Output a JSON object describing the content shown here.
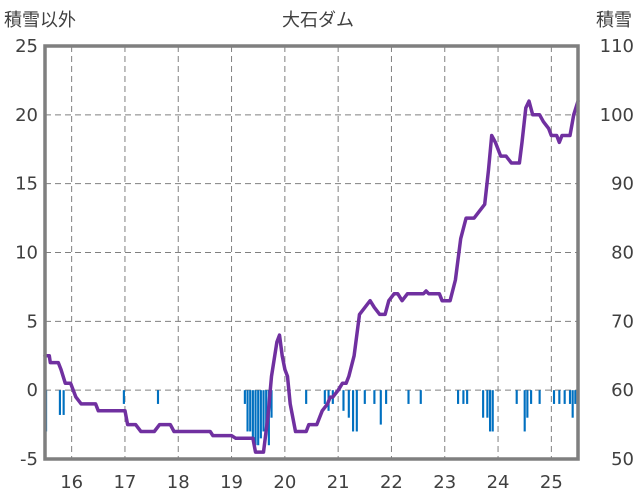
{
  "chart_data": {
    "type": "bar+line",
    "title": "大石ダム",
    "left_axis_label": "積雪以外",
    "right_axis_label": "積雪",
    "x_ticks": [
      "16",
      "17",
      "18",
      "19",
      "20",
      "21",
      "22",
      "23",
      "24",
      "25"
    ],
    "y_left": {
      "min": -5,
      "max": 25,
      "ticks": [
        "-5",
        "0",
        "5",
        "10",
        "15",
        "20",
        "25"
      ]
    },
    "y_right": {
      "min": 50,
      "max": 110,
      "ticks": [
        "50",
        "60",
        "70",
        "80",
        "90",
        "100",
        "110"
      ]
    },
    "x_range": [
      15.5,
      25.5
    ],
    "grid": {
      "vertical": "dashed",
      "horizontal": "dashed"
    },
    "colors": {
      "line": "#7030A0",
      "bars": "#0070C0",
      "frame": "#7f7f7f",
      "grid": "#808080",
      "text": "#404040"
    },
    "line_series": {
      "axis": "left",
      "points": [
        [
          15.5,
          2.5
        ],
        [
          15.58,
          2.5
        ],
        [
          15.6,
          2.0
        ],
        [
          15.75,
          2.0
        ],
        [
          15.8,
          1.5
        ],
        [
          15.88,
          0.5
        ],
        [
          15.98,
          0.5
        ],
        [
          16.08,
          -0.5
        ],
        [
          16.18,
          -1.0
        ],
        [
          16.45,
          -1.0
        ],
        [
          16.5,
          -1.5
        ],
        [
          17.0,
          -1.5
        ],
        [
          17.05,
          -2.5
        ],
        [
          17.2,
          -2.5
        ],
        [
          17.3,
          -3.0
        ],
        [
          17.55,
          -3.0
        ],
        [
          17.65,
          -2.5
        ],
        [
          17.85,
          -2.5
        ],
        [
          17.92,
          -3.0
        ],
        [
          18.6,
          -3.0
        ],
        [
          18.65,
          -3.3
        ],
        [
          19.0,
          -3.3
        ],
        [
          19.08,
          -3.5
        ],
        [
          19.4,
          -3.5
        ],
        [
          19.45,
          -4.5
        ],
        [
          19.6,
          -4.5
        ],
        [
          19.68,
          -2.0
        ],
        [
          19.75,
          1.0
        ],
        [
          19.85,
          3.5
        ],
        [
          19.9,
          4.0
        ],
        [
          19.95,
          2.5
        ],
        [
          20.0,
          1.5
        ],
        [
          20.05,
          1.0
        ],
        [
          20.1,
          -1.0
        ],
        [
          20.2,
          -3.0
        ],
        [
          20.4,
          -3.0
        ],
        [
          20.45,
          -2.5
        ],
        [
          20.6,
          -2.5
        ],
        [
          20.7,
          -1.5
        ],
        [
          20.8,
          -1.0
        ],
        [
          20.85,
          -0.5
        ],
        [
          20.9,
          -0.5
        ],
        [
          21.0,
          0.0
        ],
        [
          21.08,
          0.5
        ],
        [
          21.15,
          0.5
        ],
        [
          21.2,
          1.0
        ],
        [
          21.3,
          2.5
        ],
        [
          21.4,
          5.5
        ],
        [
          21.5,
          6.0
        ],
        [
          21.6,
          6.5
        ],
        [
          21.68,
          6.0
        ],
        [
          21.78,
          5.5
        ],
        [
          21.88,
          5.5
        ],
        [
          21.95,
          6.5
        ],
        [
          22.05,
          7.0
        ],
        [
          22.12,
          7.0
        ],
        [
          22.2,
          6.5
        ],
        [
          22.3,
          7.0
        ],
        [
          22.6,
          7.0
        ],
        [
          22.65,
          7.2
        ],
        [
          22.7,
          7.0
        ],
        [
          22.9,
          7.0
        ],
        [
          22.95,
          6.5
        ],
        [
          23.1,
          6.5
        ],
        [
          23.2,
          8.0
        ],
        [
          23.3,
          11.0
        ],
        [
          23.4,
          12.5
        ],
        [
          23.55,
          12.5
        ],
        [
          23.65,
          13.0
        ],
        [
          23.75,
          13.5
        ],
        [
          23.82,
          16.0
        ],
        [
          23.88,
          18.5
        ],
        [
          23.95,
          18.0
        ],
        [
          24.05,
          17.0
        ],
        [
          24.15,
          17.0
        ],
        [
          24.25,
          16.5
        ],
        [
          24.4,
          16.5
        ],
        [
          24.45,
          18.0
        ],
        [
          24.52,
          20.5
        ],
        [
          24.58,
          21.0
        ],
        [
          24.65,
          20.0
        ],
        [
          24.78,
          20.0
        ],
        [
          24.85,
          19.5
        ],
        [
          24.95,
          19.0
        ],
        [
          25.0,
          18.5
        ],
        [
          25.1,
          18.5
        ],
        [
          25.15,
          18.0
        ],
        [
          25.2,
          18.5
        ],
        [
          25.35,
          18.5
        ],
        [
          25.42,
          20.0
        ],
        [
          25.5,
          21.0
        ]
      ]
    },
    "bar_series": {
      "axis": "left",
      "width": 0.04,
      "values": [
        [
          15.5,
          -3.0
        ],
        [
          15.78,
          -1.8
        ],
        [
          15.85,
          -1.8
        ],
        [
          16.98,
          -1.0
        ],
        [
          17.62,
          -1.0
        ],
        [
          19.25,
          -1.0
        ],
        [
          19.3,
          -3.0
        ],
        [
          19.35,
          -3.0
        ],
        [
          19.4,
          -3.5
        ],
        [
          19.45,
          -4.0
        ],
        [
          19.5,
          -4.0
        ],
        [
          19.55,
          -3.5
        ],
        [
          19.6,
          -3.0
        ],
        [
          19.65,
          -3.0
        ],
        [
          19.7,
          -4.0
        ],
        [
          19.75,
          -2.0
        ],
        [
          20.4,
          -1.0
        ],
        [
          20.75,
          -1.0
        ],
        [
          20.82,
          -1.5
        ],
        [
          20.9,
          -1.0
        ],
        [
          21.1,
          -1.5
        ],
        [
          21.2,
          -2.0
        ],
        [
          21.28,
          -3.0
        ],
        [
          21.35,
          -3.0
        ],
        [
          21.5,
          -1.0
        ],
        [
          21.68,
          -1.0
        ],
        [
          21.8,
          -2.5
        ],
        [
          21.9,
          -1.0
        ],
        [
          22.32,
          -1.0
        ],
        [
          22.55,
          -1.0
        ],
        [
          23.25,
          -1.0
        ],
        [
          23.35,
          -1.0
        ],
        [
          23.42,
          -1.0
        ],
        [
          23.72,
          -2.0
        ],
        [
          23.8,
          -2.0
        ],
        [
          23.85,
          -3.0
        ],
        [
          23.9,
          -3.0
        ],
        [
          24.35,
          -1.0
        ],
        [
          24.5,
          -3.0
        ],
        [
          24.55,
          -2.0
        ],
        [
          24.62,
          -1.0
        ],
        [
          24.78,
          -1.0
        ],
        [
          25.05,
          -1.0
        ],
        [
          25.15,
          -1.0
        ],
        [
          25.25,
          -1.0
        ],
        [
          25.35,
          -1.0
        ],
        [
          25.4,
          -2.0
        ],
        [
          25.45,
          -1.0
        ]
      ]
    }
  }
}
